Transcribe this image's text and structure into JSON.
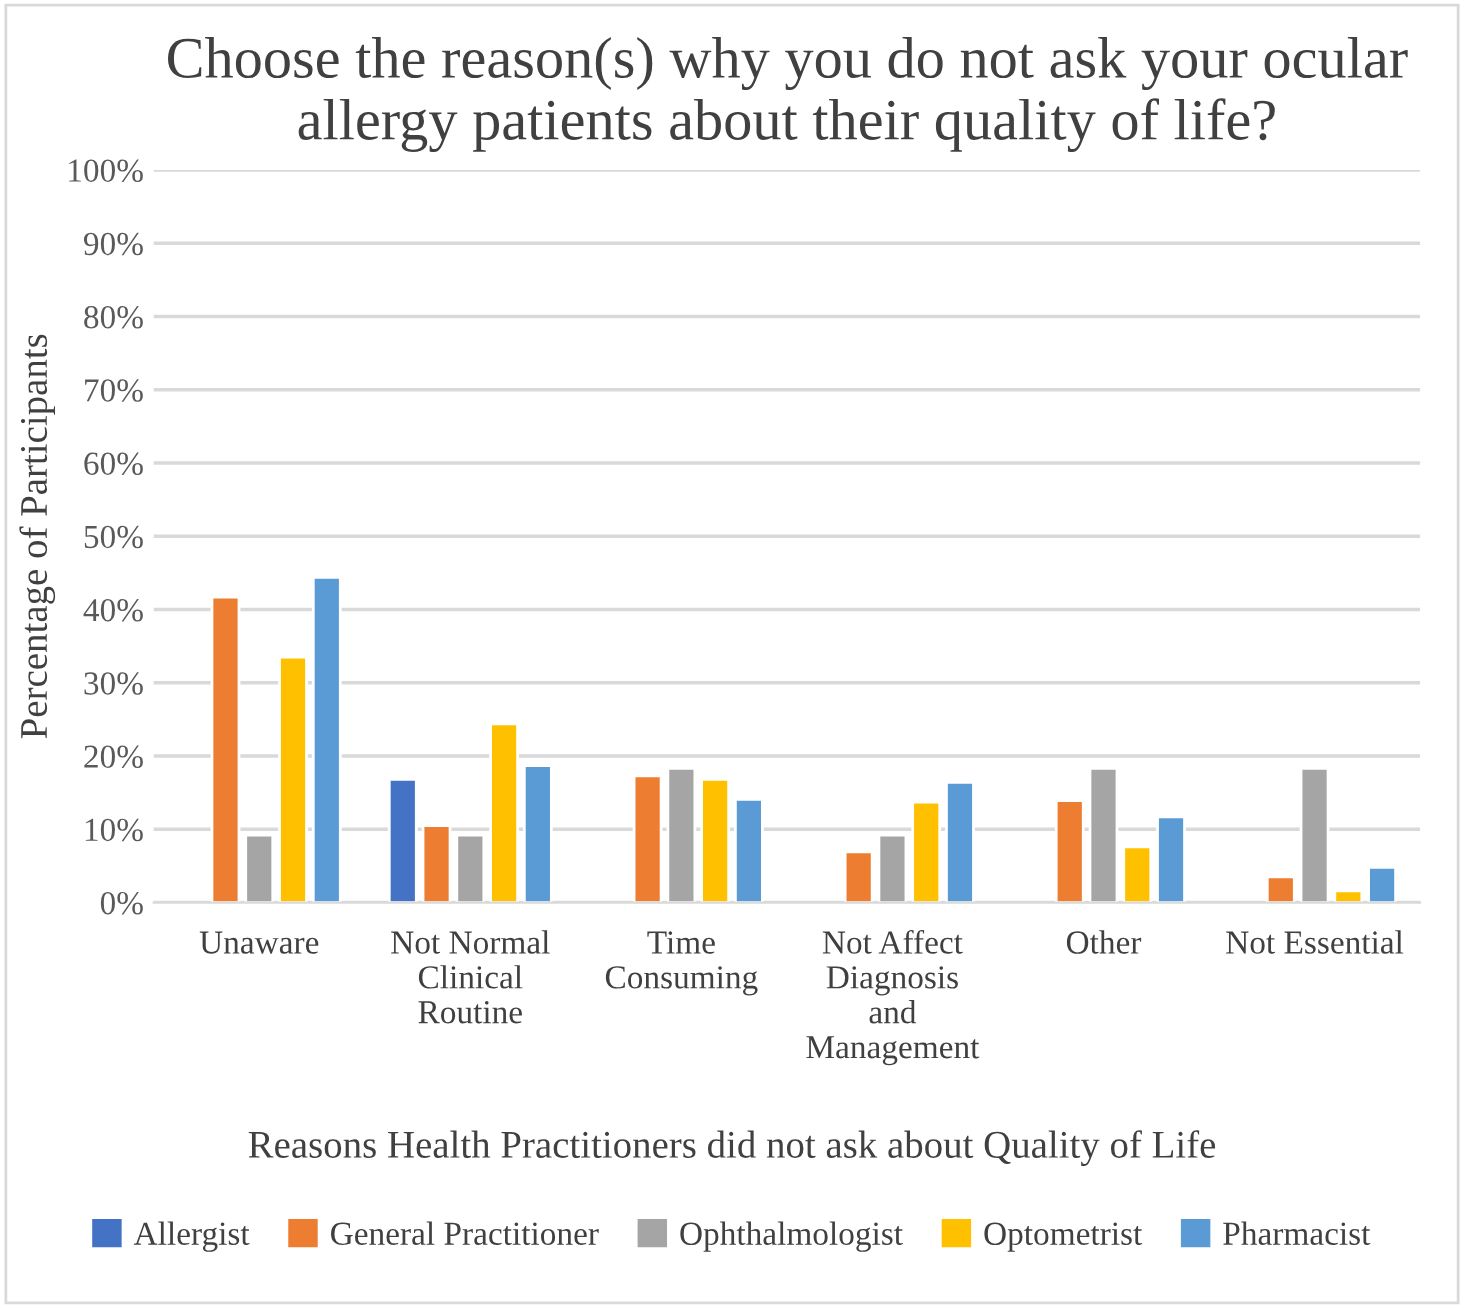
{
  "chart_data": {
    "type": "bar",
    "title": "Choose the reason(s) why you do not ask your ocular allergy patients about their quality of life?",
    "xlabel": "Reasons Health Practitioners did not ask about Quality of Life",
    "ylabel": "Percentage of Participants",
    "categories": [
      "Unaware",
      "Not Normal\nClinical\nRoutine",
      "Time\nConsuming",
      "Not Affect\nDiagnosis\nand\nManagement",
      "Other",
      "Not Essential"
    ],
    "series": [
      {
        "name": "Allergist",
        "color": "#4472c4",
        "values": [
          null,
          16.8,
          null,
          null,
          null,
          null
        ]
      },
      {
        "name": "General Practitioner",
        "color": "#ed7d31",
        "values": [
          41.7,
          10.5,
          17.3,
          6.9,
          13.9,
          3.5
        ]
      },
      {
        "name": "Ophthalmologist",
        "color": "#a5a5a5",
        "values": [
          9.2,
          9.2,
          18.3,
          9.2,
          18.3,
          18.3
        ]
      },
      {
        "name": "Optometrist",
        "color": "#ffc000",
        "values": [
          33.5,
          24.4,
          16.8,
          13.7,
          7.6,
          1.6
        ]
      },
      {
        "name": "Pharmacist",
        "color": "#5b9bd5",
        "values": [
          44.4,
          18.7,
          14.1,
          16.4,
          11.7,
          4.8
        ]
      }
    ],
    "ylim": [
      0,
      100
    ],
    "yticks": [
      {
        "value": 0,
        "label": "0%"
      },
      {
        "value": 10,
        "label": "10%"
      },
      {
        "value": 20,
        "label": "20%"
      },
      {
        "value": 30,
        "label": "30%"
      },
      {
        "value": 40,
        "label": "40%"
      },
      {
        "value": 50,
        "label": "50%"
      },
      {
        "value": 60,
        "label": "60%"
      },
      {
        "value": 70,
        "label": "70%"
      },
      {
        "value": 80,
        "label": "80%"
      },
      {
        "value": 90,
        "label": "90%"
      },
      {
        "value": 100,
        "label": "100%"
      }
    ],
    "grid": "y",
    "legend": "bottom"
  }
}
